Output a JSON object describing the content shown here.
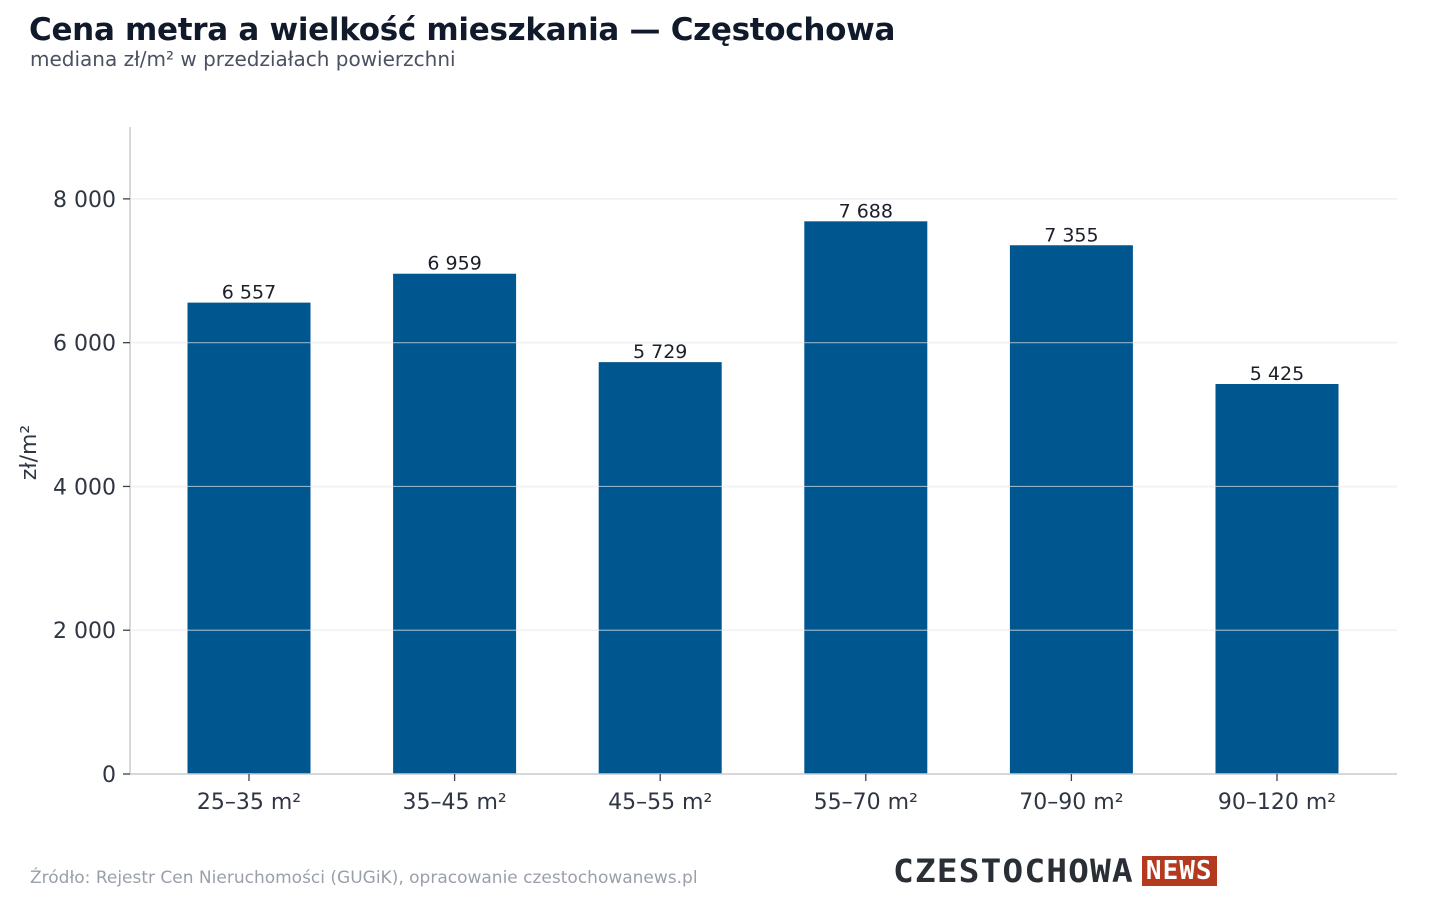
{
  "header": {
    "title": "Cena metra a wielkość mieszkania — Częstochowa",
    "subtitle": "mediana zł/m² w przedziałach powierzchni"
  },
  "footer": {
    "source": "Źródło: Rejestr Cen Nieruchomości (GUGiK), opracowanie czestochowanews.pl",
    "logo_main": "CZESTOCHOWA",
    "logo_tag": "NEWS"
  },
  "colors": {
    "bar": "#00568f",
    "grid": "#e3e5e8",
    "axis": "#c9ccd1",
    "tick_text": "#2f3642",
    "label_text": "#1a1f2a",
    "logo_accent": "#b33a1f"
  },
  "chart_data": {
    "type": "bar",
    "title": "Cena metra a wielkość mieszkania — Częstochowa",
    "subtitle": "mediana zł/m² w przedziałach powierzchni",
    "xlabel": "",
    "ylabel": "zł/m²",
    "categories": [
      "25–35 m²",
      "35–45 m²",
      "45–55 m²",
      "55–70 m²",
      "70–90 m²",
      "90–120 m²"
    ],
    "values": [
      6557,
      6959,
      5729,
      7688,
      7355,
      5425
    ],
    "value_labels": [
      "6 557",
      "6 959",
      "5 729",
      "7 688",
      "7 355",
      "5 425"
    ],
    "yticks": [
      0,
      2000,
      4000,
      6000,
      8000
    ],
    "ytick_labels": [
      "0",
      "2 000",
      "4 000",
      "6 000",
      "8 000"
    ],
    "ylim": [
      0,
      9000
    ],
    "grid": true,
    "legend": "none"
  }
}
